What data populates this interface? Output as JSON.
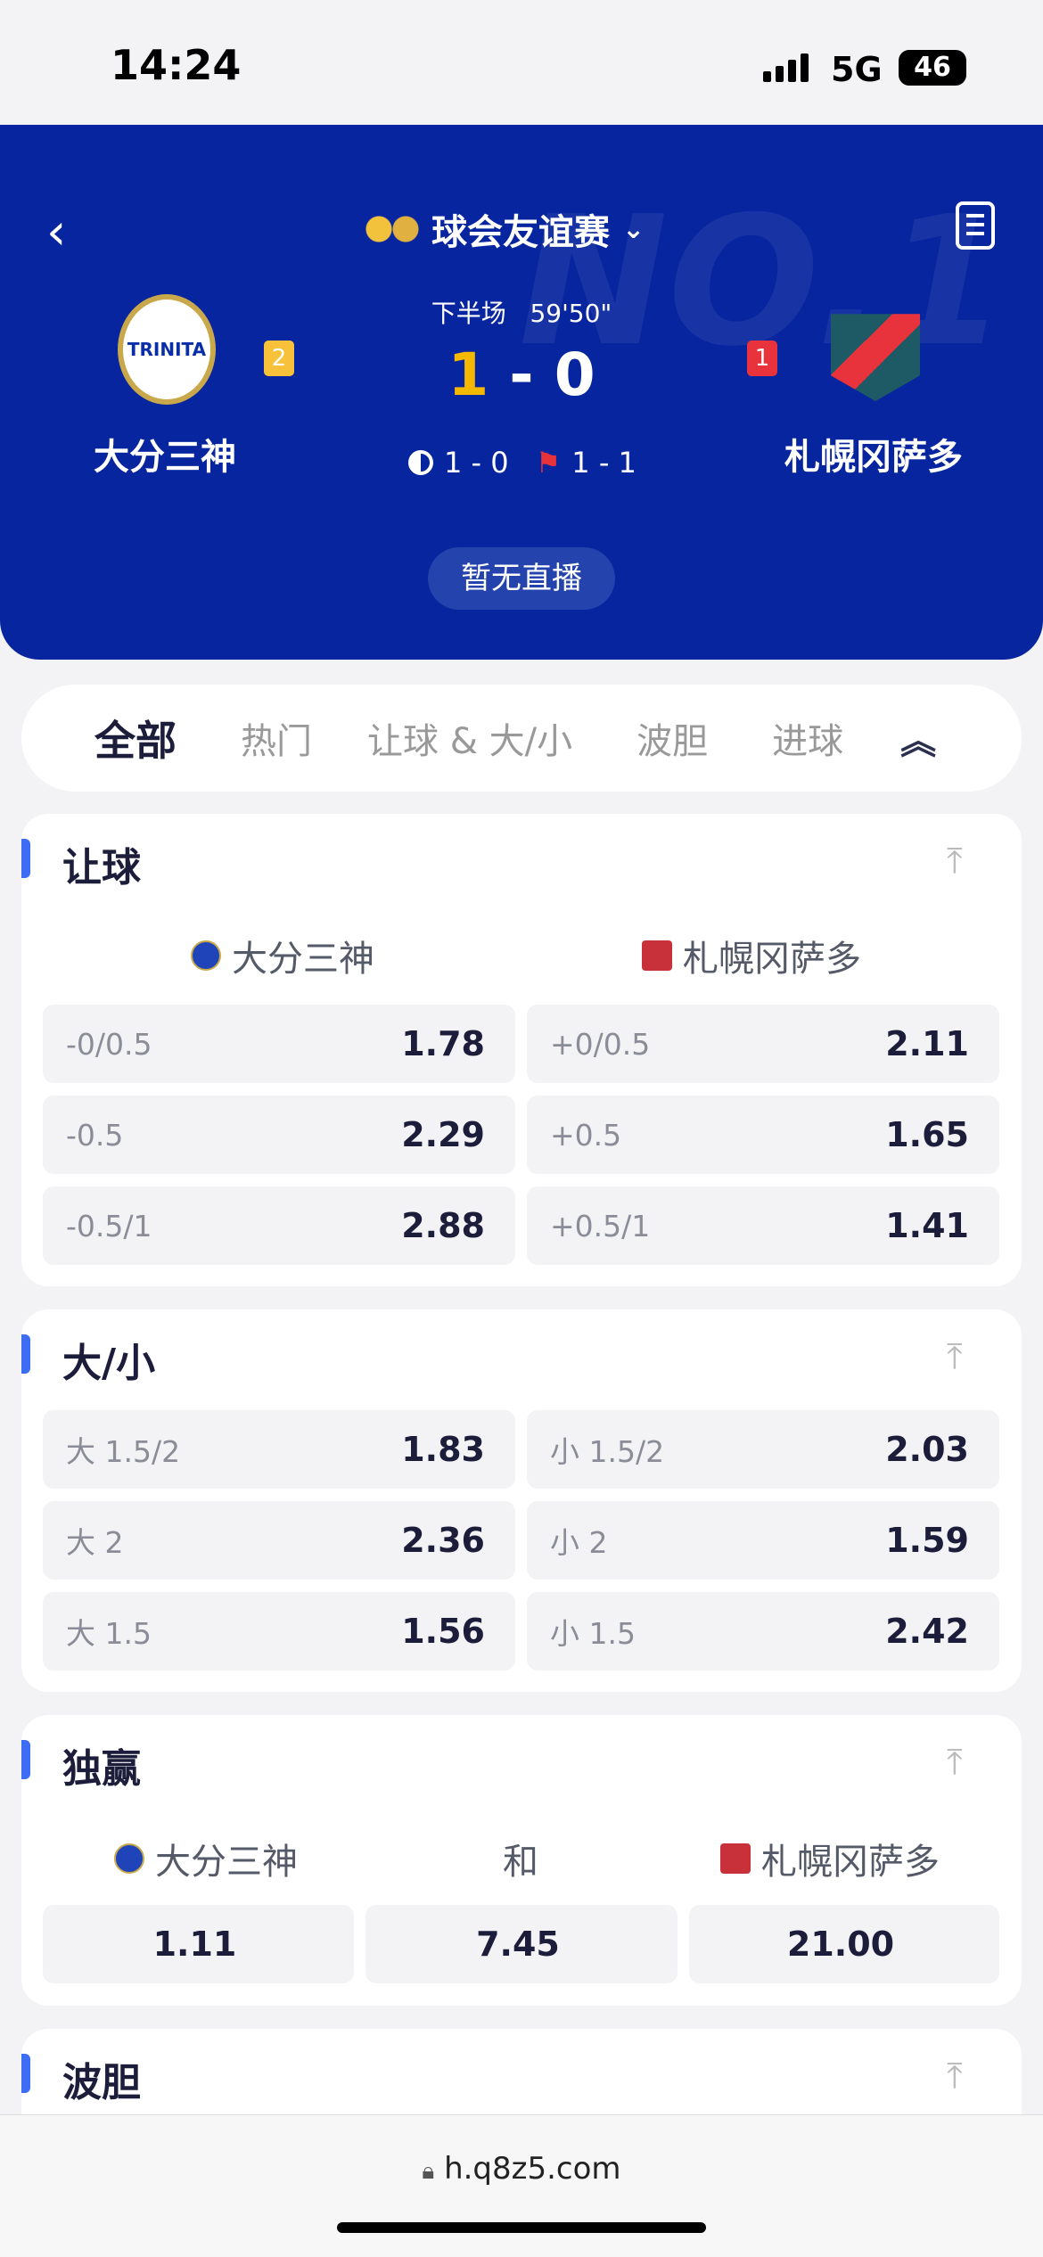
{
  "status_bar": {
    "time": "14:24",
    "network": "5G",
    "battery": "46"
  },
  "header": {
    "league": "球会友谊赛",
    "period": "下半场",
    "clock": "59'50\"",
    "home": {
      "name": "大分三神",
      "red_cards": "2",
      "score": "1"
    },
    "away": {
      "name": "札幌冈萨多",
      "red_cards": "1",
      "score": "0"
    },
    "score_sep": "-",
    "halftime": "1 - 0",
    "corners": "1 - 1",
    "live_button": "暂无直播",
    "colors": {
      "bg": "#07259e",
      "home_score": "#f5b800",
      "yellow_badge": "#f7c23a",
      "red_badge": "#e8323c"
    }
  },
  "tabs": [
    {
      "label": "全部",
      "active": true
    },
    {
      "label": "热门"
    },
    {
      "label": "让球 & 大/小"
    },
    {
      "label": "波胆"
    },
    {
      "label": "进球"
    }
  ],
  "handicap": {
    "title": "让球",
    "home": "大分三神",
    "away": "札幌冈萨多",
    "rows": [
      [
        "-0/0.5",
        "1.78",
        "+0/0.5",
        "2.11"
      ],
      [
        "-0.5",
        "2.29",
        "+0.5",
        "1.65"
      ],
      [
        "-0.5/1",
        "2.88",
        "+0.5/1",
        "1.41"
      ]
    ]
  },
  "overunder": {
    "title": "大/小",
    "rows": [
      [
        "大 1.5/2",
        "1.83",
        "小 1.5/2",
        "2.03"
      ],
      [
        "大 2",
        "2.36",
        "小 2",
        "1.59"
      ],
      [
        "大 1.5",
        "1.56",
        "小 1.5",
        "2.42"
      ]
    ]
  },
  "moneyline": {
    "title": "独赢",
    "home": "大分三神",
    "draw": "和",
    "away": "札幌冈萨多",
    "odds": [
      "1.11",
      "7.45",
      "21.00"
    ]
  },
  "correct_score": {
    "title": "波胆"
  },
  "browser": {
    "url": "h.q8z5.com"
  }
}
